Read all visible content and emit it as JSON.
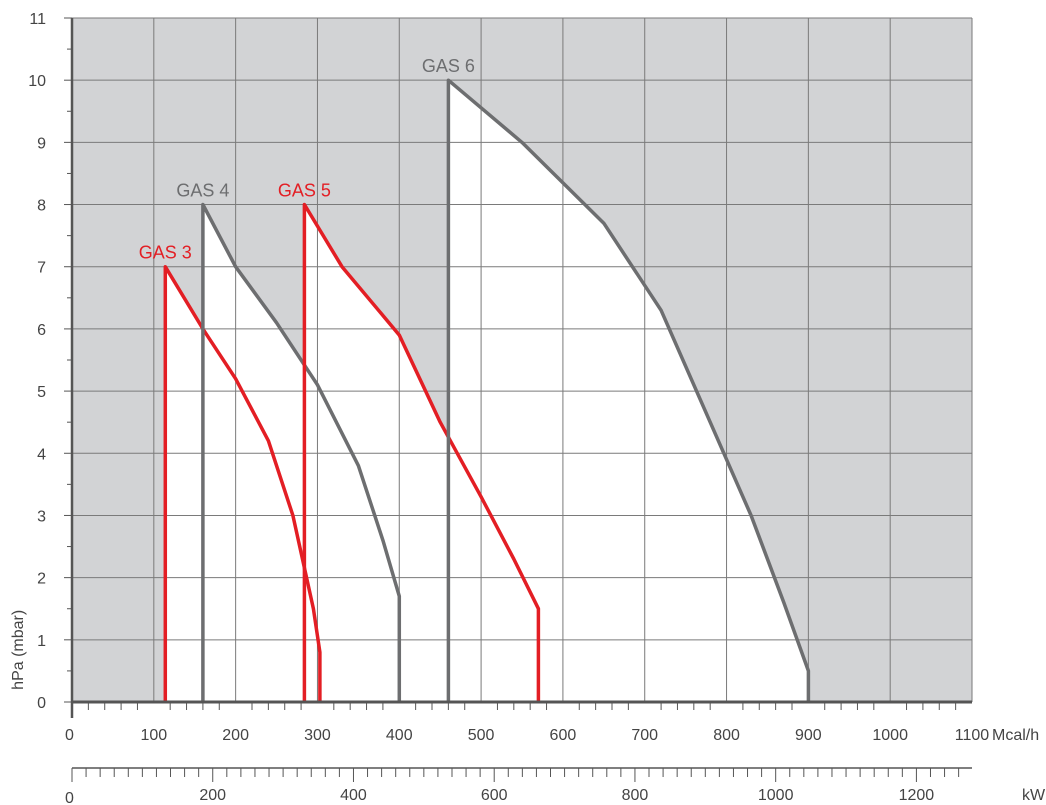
{
  "chart_data": {
    "type": "area",
    "ylabel": "hPa (mbar)",
    "y_ticks": [
      "0",
      "1",
      "2",
      "3",
      "4",
      "5",
      "6",
      "7",
      "8",
      "9",
      "10",
      "11"
    ],
    "ylim": [
      0,
      11
    ],
    "x_primary": {
      "unit": "Mcal/h",
      "ticks": [
        "0",
        "100",
        "200",
        "300",
        "400",
        "500",
        "600",
        "700",
        "800",
        "900",
        "1000",
        "1100"
      ],
      "lim": [
        0,
        1100
      ]
    },
    "x_secondary": {
      "unit": "kW",
      "ticks": [
        "0",
        "200",
        "400",
        "600",
        "800",
        "1000",
        "1200"
      ],
      "lim": [
        0,
        1279
      ]
    },
    "grid": true,
    "colors": {
      "background": "#d2d3d5",
      "area_fill": "#ffffff",
      "grid": "#7a7a7a",
      "axis": "#555555",
      "gray_series": "#6d6e70",
      "red_series": "#e31e24"
    },
    "series": [
      {
        "name": "GAS 3",
        "color": "red",
        "points": [
          [
            114,
            0
          ],
          [
            114,
            7
          ],
          [
            160,
            6
          ],
          [
            200,
            5.2
          ],
          [
            240,
            4.2
          ],
          [
            270,
            3
          ],
          [
            295,
            1.5
          ],
          [
            303,
            0.8
          ],
          [
            303,
            0
          ]
        ]
      },
      {
        "name": "GAS 4",
        "color": "gray",
        "points": [
          [
            160,
            0
          ],
          [
            160,
            8
          ],
          [
            200,
            7
          ],
          [
            250,
            6.1
          ],
          [
            300,
            5.1
          ],
          [
            350,
            3.8
          ],
          [
            380,
            2.6
          ],
          [
            400,
            1.7
          ],
          [
            400,
            0
          ]
        ]
      },
      {
        "name": "GAS 5",
        "color": "red",
        "points": [
          [
            284,
            0
          ],
          [
            284,
            8
          ],
          [
            330,
            7
          ],
          [
            400,
            5.9
          ],
          [
            450,
            4.5
          ],
          [
            500,
            3.3
          ],
          [
            540,
            2.3
          ],
          [
            570,
            1.5
          ],
          [
            570,
            0
          ]
        ]
      },
      {
        "name": "GAS 6",
        "color": "gray",
        "points": [
          [
            460,
            0
          ],
          [
            460,
            10
          ],
          [
            550,
            9
          ],
          [
            650,
            7.7
          ],
          [
            720,
            6.3
          ],
          [
            780,
            4.5
          ],
          [
            830,
            3
          ],
          [
            870,
            1.6
          ],
          [
            900,
            0.5
          ],
          [
            900,
            0
          ]
        ]
      }
    ]
  }
}
